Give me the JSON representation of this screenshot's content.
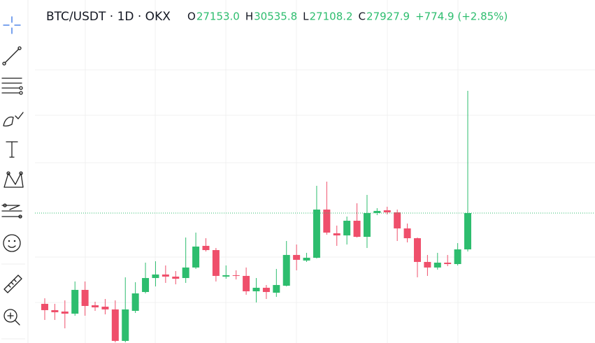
{
  "chart_data": {
    "type": "candlestick",
    "title": "BTC/USDT · 1D · OKX",
    "legend": {
      "labels": [
        "O",
        "H",
        "L",
        "C"
      ],
      "values": [
        "27153.0",
        "30535.8",
        "27108.2",
        "27927.9"
      ],
      "change": "+774.9 (+2.85%)"
    },
    "up_color": "#2dbd6e",
    "down_color": "#ef4f6b",
    "ylim": [
      25156,
      32472
    ],
    "open": [
      25991,
      25857,
      25827,
      25782,
      26289,
      25961,
      25931,
      25872,
      25201,
      25842,
      26244,
      26542,
      26617,
      26572,
      26542,
      26766,
      27228,
      27138,
      26572,
      26602,
      26587,
      26259,
      26334,
      26229,
      26378,
      27034,
      26915,
      26974,
      28002,
      27496,
      27451,
      27764,
      27421,
      27928,
      27987,
      27943,
      27600,
      27391,
      26885,
      26766,
      26870,
      26840,
      27153.0
    ],
    "high": [
      26110,
      25991,
      26065,
      26468,
      26468,
      26036,
      26095,
      26065,
      26557,
      26453,
      26870,
      26900,
      26810,
      26691,
      27406,
      27511,
      27391,
      27183,
      26810,
      26706,
      26766,
      26542,
      26393,
      26736,
      27332,
      27257,
      27079,
      28509,
      28598,
      27660,
      27853,
      28136,
      28315,
      28032,
      28062,
      28002,
      27704,
      27406,
      27034,
      27079,
      27034,
      27287,
      30535.8
    ],
    "low": [
      25648,
      25648,
      25469,
      25738,
      25738,
      25842,
      25767,
      25171,
      25171,
      25797,
      26214,
      26363,
      26438,
      26408,
      26438,
      26736,
      27108,
      26468,
      26527,
      26512,
      26185,
      26021,
      26095,
      26140,
      26363,
      26706,
      26885,
      26959,
      27466,
      27228,
      27257,
      27406,
      27183,
      27883,
      27898,
      27332,
      27302,
      26557,
      26587,
      26721,
      26795,
      26810,
      27108.2
    ],
    "close": [
      25857,
      25812,
      25782,
      26289,
      25946,
      25916,
      25872,
      25201,
      25872,
      26214,
      26542,
      26617,
      26572,
      26527,
      26766,
      27213,
      27138,
      26587,
      26602,
      26587,
      26259,
      26334,
      26244,
      26393,
      27034,
      26930,
      26974,
      28002,
      27511,
      27451,
      27764,
      27421,
      27928,
      27973,
      27943,
      27600,
      27391,
      26885,
      26766,
      26870,
      26840,
      27153,
      27927.9
    ],
    "last_price_line": true
  }
}
